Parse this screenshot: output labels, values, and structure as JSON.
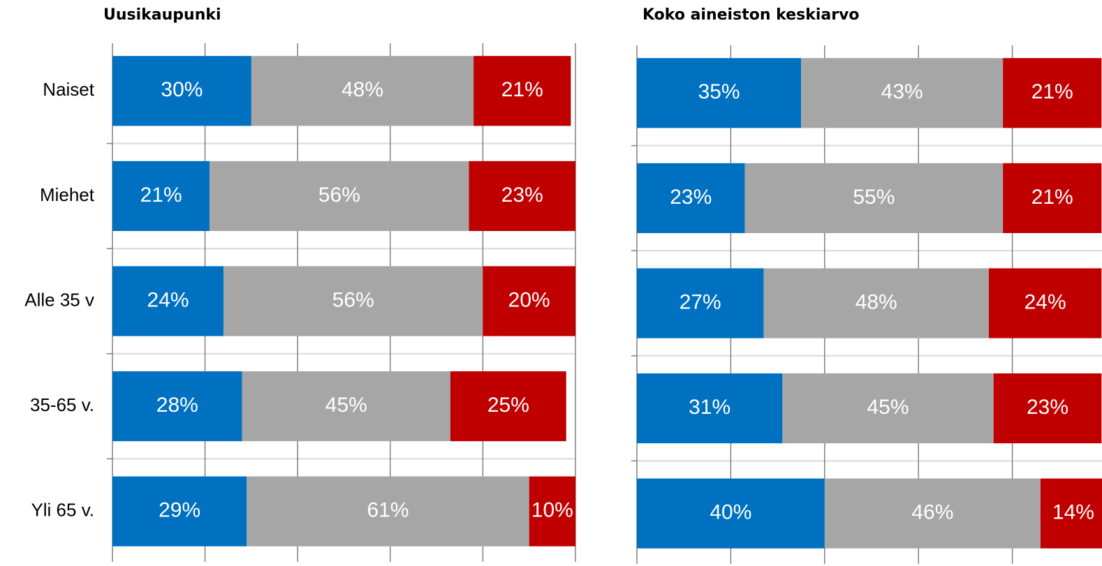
{
  "chart_data": [
    {
      "type": "stacked_bar_horizontal",
      "title": "Uusikaupunki",
      "categories": [
        "Naiset",
        "Miehet",
        "Alle 35 v",
        "35-65 v.",
        "Yli 65 v."
      ],
      "series": [
        {
          "color": "#0070c0",
          "values": [
            30,
            21,
            24,
            28,
            29
          ],
          "value_labels": [
            "30%",
            "21%",
            "24%",
            "28%",
            "29%"
          ]
        },
        {
          "color": "#a6a6a6",
          "values": [
            48,
            56,
            56,
            45,
            61
          ],
          "value_labels": [
            "48%",
            "56%",
            "56%",
            "45%",
            "61%"
          ]
        },
        {
          "color": "#c00000",
          "values": [
            21,
            23,
            20,
            25,
            10
          ],
          "value_labels": [
            "21%",
            "23%",
            "20%",
            "25%",
            "10%"
          ]
        }
      ],
      "xlim": [
        0,
        100
      ],
      "xticks": [
        0,
        20,
        40,
        60,
        80,
        100
      ],
      "grid": true
    },
    {
      "type": "stacked_bar_horizontal",
      "title": "Koko aineiston keskiarvo",
      "categories": [
        null,
        null,
        null,
        null,
        null
      ],
      "series": [
        {
          "color": "#0070c0",
          "values": [
            35,
            23,
            27,
            31,
            40
          ],
          "value_labels": [
            "35%",
            "23%",
            "27%",
            "31%",
            "40%"
          ]
        },
        {
          "color": "#a6a6a6",
          "values": [
            43,
            55,
            48,
            45,
            46
          ],
          "value_labels": [
            "43%",
            "55%",
            "48%",
            "45%",
            "46%"
          ]
        },
        {
          "color": "#c00000",
          "values": [
            21,
            21,
            24,
            23,
            14
          ],
          "value_labels": [
            "21%",
            "21%",
            "24%",
            "23%",
            "14%"
          ]
        }
      ],
      "xlim": [
        0,
        100
      ],
      "xticks": [
        0,
        20,
        40,
        60,
        80,
        100
      ],
      "grid": true
    }
  ]
}
